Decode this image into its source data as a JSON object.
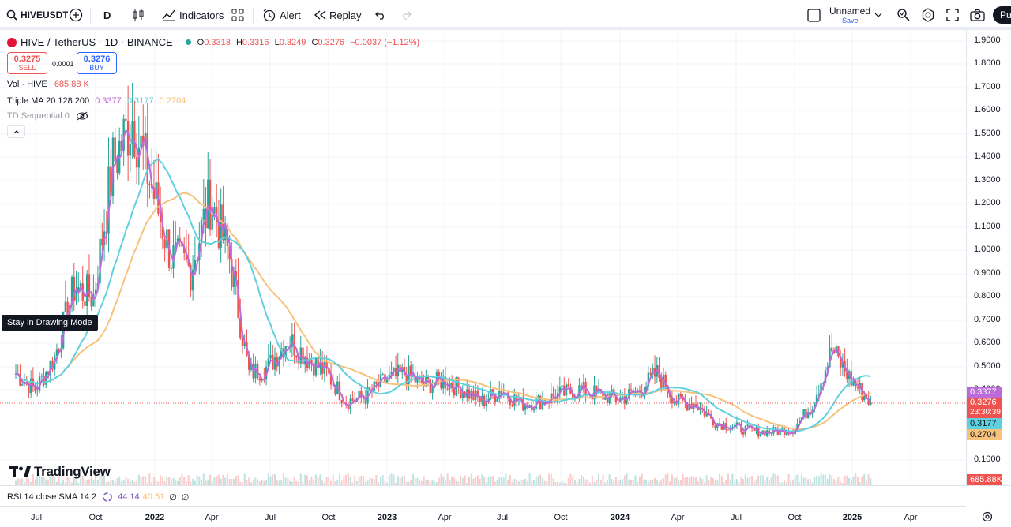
{
  "toolbar": {
    "symbol": "HIVEUSDT",
    "interval": "D",
    "indicators_label": "Indicators",
    "alert_label": "Alert",
    "replay_label": "Replay",
    "layout_name": "Unnamed",
    "save_label": "Save",
    "publish_label": "Pu"
  },
  "legend": {
    "title": "HIVE / TetherUS · 1D · BINANCE",
    "o_label": "O",
    "o": "0.3313",
    "h_label": "H",
    "h": "0.3316",
    "l_label": "L",
    "l": "0.3249",
    "c_label": "C",
    "c": "0.3276",
    "change": "−0.0037 (−1.12%)",
    "sell_price": "0.3275",
    "sell_label": "SELL",
    "spread": "0.0001",
    "buy_price": "0.3276",
    "buy_label": "BUY",
    "vol_label": "Vol · HIVE",
    "vol_value": "685.88 K",
    "ma_label": "Triple MA 20 128 200",
    "ma1": "0.3377",
    "ma2": "0.3177",
    "ma3": "0.2704",
    "td_label": "TD Sequential 0"
  },
  "tooltip": "Stay in Drawing Mode",
  "brand": "TradingView",
  "rsi": {
    "label": "RSI 14 close SMA 14 2",
    "v1": "44.14",
    "v2": "40.51",
    "v3": "∅",
    "v4": "∅"
  },
  "price_axis": {
    "ticks": [
      "1.9000",
      "1.8000",
      "1.7000",
      "1.6000",
      "1.5000",
      "1.4000",
      "1.3000",
      "1.2000",
      "1.1000",
      "1.0000",
      "0.9000",
      "0.8000",
      "0.7000",
      "0.6000",
      "0.5000",
      "0.4000",
      "0.1000"
    ],
    "ma1_badge": "0.3377",
    "price_badge": "0.3276",
    "countdown": "23:30:39",
    "ma2_badge": "0.3177",
    "ma3_badge": "0.2704",
    "vol_badge": "685.88K"
  },
  "time_axis": [
    {
      "label": "Jul",
      "bold": false
    },
    {
      "label": "Oct",
      "bold": false
    },
    {
      "label": "2022",
      "bold": true
    },
    {
      "label": "Apr",
      "bold": false
    },
    {
      "label": "Jul",
      "bold": false
    },
    {
      "label": "Oct",
      "bold": false
    },
    {
      "label": "2023",
      "bold": true
    },
    {
      "label": "Apr",
      "bold": false
    },
    {
      "label": "Jul",
      "bold": false
    },
    {
      "label": "Oct",
      "bold": false
    },
    {
      "label": "2024",
      "bold": true
    },
    {
      "label": "Apr",
      "bold": false
    },
    {
      "label": "Jul",
      "bold": false
    },
    {
      "label": "Oct",
      "bold": false
    },
    {
      "label": "2025",
      "bold": true
    },
    {
      "label": "Apr",
      "bold": false
    }
  ],
  "colors": {
    "up": "#26a69a",
    "down": "#ef5350",
    "ma1": "#bb6bd9",
    "ma2": "#5fd0df",
    "ma3": "#f7c27a",
    "last": "#ef5350",
    "ma2_badge_bg": "#5fd0df",
    "ma3_badge_bg": "#f7c27a"
  },
  "chart_data": {
    "type": "candlestick",
    "price_scale": [
      0.1,
      1.9
    ],
    "close_series": [
      [
        "2021-06",
        0.45
      ],
      [
        "2021-07",
        0.38
      ],
      [
        "2021-08",
        0.52
      ],
      [
        "2021-09",
        0.82
      ],
      [
        "2021-10",
        0.78
      ],
      [
        "2021-11",
        1.35
      ],
      [
        "2021-12",
        1.55
      ],
      [
        "2022-01",
        1.25
      ],
      [
        "2022-02",
        0.95
      ],
      [
        "2022-03",
        0.9
      ],
      [
        "2022-04",
        1.2
      ],
      [
        "2022-05",
        0.95
      ],
      [
        "2022-06",
        0.45
      ],
      [
        "2022-07",
        0.48
      ],
      [
        "2022-08",
        0.6
      ],
      [
        "2022-09",
        0.52
      ],
      [
        "2022-10",
        0.45
      ],
      [
        "2022-11",
        0.33
      ],
      [
        "2022-12",
        0.35
      ],
      [
        "2023-01",
        0.42
      ],
      [
        "2023-02",
        0.45
      ],
      [
        "2023-03",
        0.4
      ],
      [
        "2023-04",
        0.42
      ],
      [
        "2023-05",
        0.38
      ],
      [
        "2023-06",
        0.33
      ],
      [
        "2023-07",
        0.38
      ],
      [
        "2023-08",
        0.32
      ],
      [
        "2023-09",
        0.33
      ],
      [
        "2023-10",
        0.36
      ],
      [
        "2023-11",
        0.38
      ],
      [
        "2023-12",
        0.36
      ],
      [
        "2024-01",
        0.34
      ],
      [
        "2024-02",
        0.37
      ],
      [
        "2024-03",
        0.45
      ],
      [
        "2024-04",
        0.33
      ],
      [
        "2024-05",
        0.32
      ],
      [
        "2024-06",
        0.24
      ],
      [
        "2024-07",
        0.22
      ],
      [
        "2024-08",
        0.2
      ],
      [
        "2024-09",
        0.2
      ],
      [
        "2024-10",
        0.21
      ],
      [
        "2024-11",
        0.32
      ],
      [
        "2024-12",
        0.55
      ],
      [
        "2025-01",
        0.42
      ],
      [
        "2025-02",
        0.3276
      ]
    ]
  }
}
